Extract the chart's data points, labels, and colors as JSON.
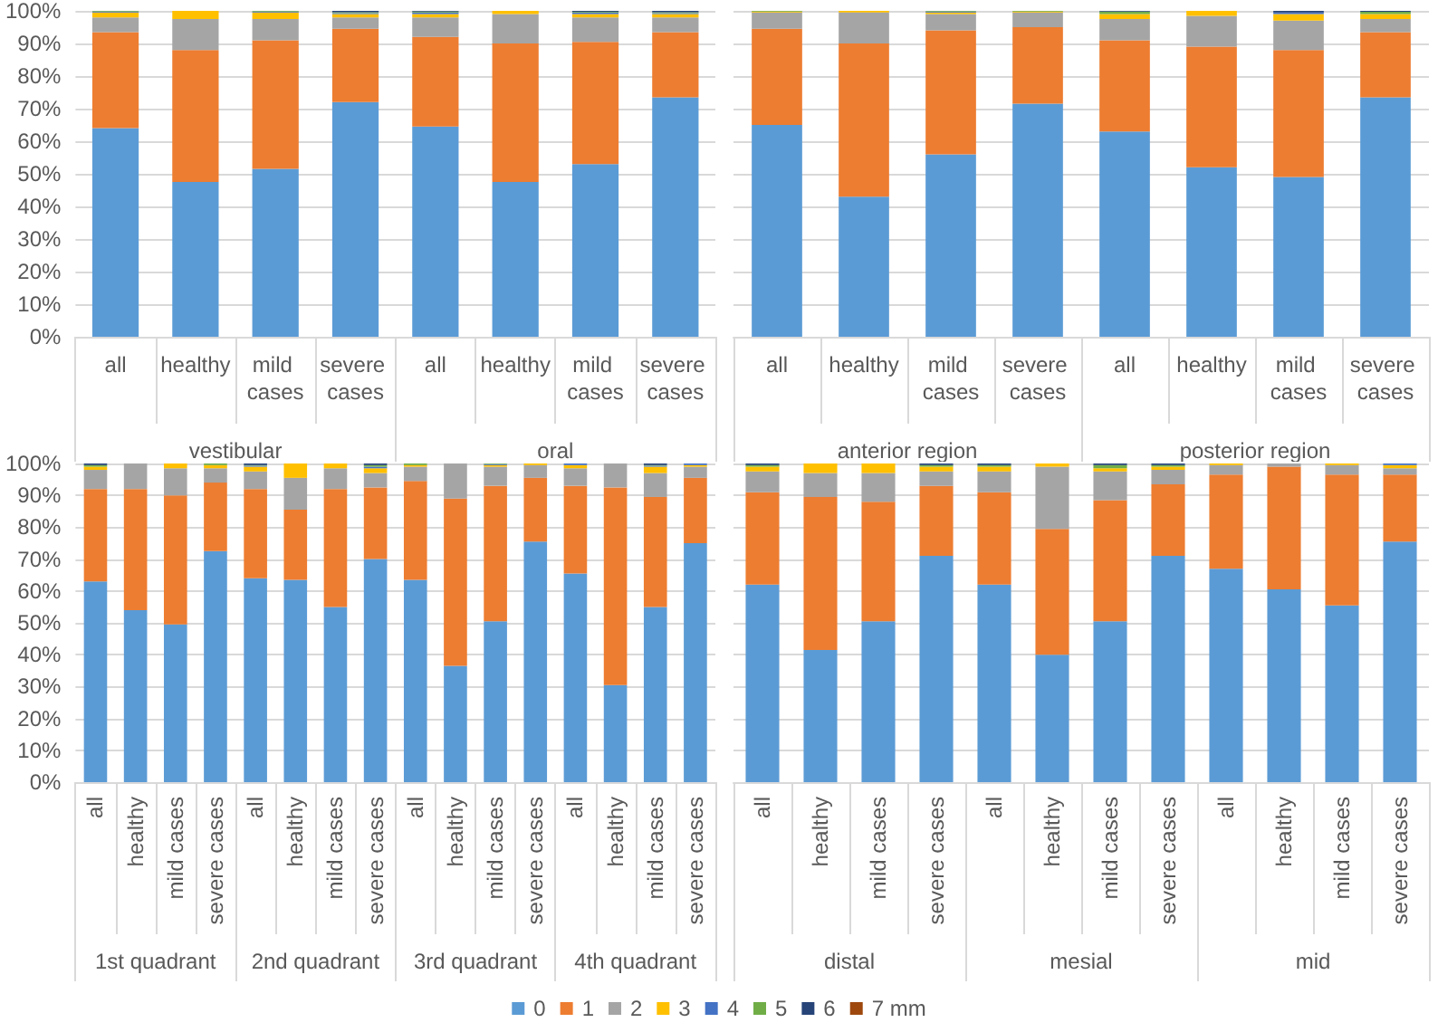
{
  "chart_data": [
    {
      "type": "bar",
      "stacked": true,
      "grid": "y",
      "categories": [
        "all",
        "healthy",
        "mild cases",
        "severe cases",
        "all",
        "healthy",
        "mild cases",
        "severe cases"
      ],
      "annotations": [
        "vestibular",
        "oral"
      ],
      "ylim": [
        0,
        100
      ],
      "yticks": [
        {
          "value": 0,
          "label": "0%"
        },
        {
          "value": 10,
          "label": "10%"
        },
        {
          "value": 20,
          "label": "20%"
        },
        {
          "value": 30,
          "label": "30%"
        },
        {
          "value": 40,
          "label": "40%"
        },
        {
          "value": 50,
          "label": "50%"
        },
        {
          "value": 60,
          "label": "60%"
        },
        {
          "value": 70,
          "label": "70%"
        },
        {
          "value": 80,
          "label": "80%"
        },
        {
          "value": 90,
          "label": "90%"
        },
        {
          "value": 100,
          "label": "100%"
        }
      ],
      "series": [
        {
          "color": "#5b9bd5",
          "values": [
            64,
            47.5,
            51.5,
            72,
            64.5,
            47.5,
            53,
            73.5
          ]
        },
        {
          "color": "#ed7d31",
          "values": [
            29.5,
            40.5,
            39.5,
            22.5,
            27.5,
            42.5,
            37.5,
            20
          ]
        },
        {
          "color": "#a5a5a5",
          "values": [
            4.5,
            9.5,
            6.5,
            3.5,
            6,
            9,
            7.5,
            4.5
          ]
        },
        {
          "color": "#ffc000",
          "values": [
            1.5,
            2.5,
            2,
            1,
            1,
            1,
            1,
            1
          ]
        },
        {
          "color": "#4472c4",
          "values": [
            0.3,
            0,
            0.3,
            0.3,
            0.5,
            0,
            0.5,
            0.3
          ]
        },
        {
          "color": "#70ad47",
          "values": [
            0.2,
            0,
            0.2,
            0.3,
            0.3,
            0,
            0.2,
            0.3
          ]
        },
        {
          "color": "#264478",
          "values": [
            0,
            0,
            0,
            0.4,
            0.2,
            0,
            0.3,
            0.4
          ]
        },
        {
          "color": "#9e480e",
          "values": [
            0,
            0,
            0,
            0,
            0,
            0,
            0,
            0
          ]
        }
      ]
    },
    {
      "type": "bar",
      "stacked": true,
      "grid": "y",
      "tick_labels": "x",
      "categories": [
        "all",
        "healthy",
        "mild cases",
        "severe cases",
        "all",
        "healthy",
        "mild cases",
        "severe cases"
      ],
      "annotations": [
        "anterior region",
        "posterior region"
      ],
      "ylim": [
        0,
        100
      ],
      "yticks": [
        {
          "value": 0,
          "label": "0%"
        },
        {
          "value": 10,
          "label": "10%"
        },
        {
          "value": 20,
          "label": "20%"
        },
        {
          "value": 30,
          "label": "30%"
        },
        {
          "value": 40,
          "label": "40%"
        },
        {
          "value": 50,
          "label": "50%"
        },
        {
          "value": 60,
          "label": "60%"
        },
        {
          "value": 70,
          "label": "70%"
        },
        {
          "value": 80,
          "label": "80%"
        },
        {
          "value": 90,
          "label": "90%"
        },
        {
          "value": 100,
          "label": "100%"
        }
      ],
      "series": [
        {
          "color": "#5b9bd5",
          "values": [
            65,
            43,
            56,
            71.5,
            63,
            52,
            49,
            73.5
          ]
        },
        {
          "color": "#ed7d31",
          "values": [
            29.5,
            47,
            38,
            23.5,
            28,
            37,
            39,
            20
          ]
        },
        {
          "color": "#a5a5a5",
          "values": [
            5,
            9.5,
            5,
            4.5,
            6.5,
            9.5,
            9,
            4
          ]
        },
        {
          "color": "#ffc000",
          "values": [
            0.3,
            0.5,
            0.5,
            0.3,
            1.5,
            1.5,
            2,
            1.5
          ]
        },
        {
          "color": "#4472c4",
          "values": [
            0,
            0,
            0.3,
            0,
            0,
            0,
            0.5,
            0
          ]
        },
        {
          "color": "#70ad47",
          "values": [
            0.2,
            0,
            0.2,
            0.2,
            0.8,
            0,
            0,
            0.7
          ]
        },
        {
          "color": "#264478",
          "values": [
            0,
            0,
            0,
            0,
            0.2,
            0,
            0.5,
            0.3
          ]
        },
        {
          "color": "#9e480e",
          "values": [
            0,
            0,
            0,
            0,
            0,
            0,
            0,
            0
          ]
        }
      ]
    },
    {
      "type": "bar",
      "stacked": true,
      "grid": "y",
      "legend": "bottom",
      "categories": [
        "all",
        "healthy",
        "mild cases",
        "severe cases",
        "all",
        "healthy",
        "mild cases",
        "severe cases",
        "all",
        "healthy",
        "mild cases",
        "severe cases",
        "all",
        "healthy",
        "mild cases",
        "severe cases"
      ],
      "annotations": [
        "1st quadrant",
        "2nd quadrant",
        "3rd quadrant",
        "4th quadrant"
      ],
      "ylim": [
        0,
        100
      ],
      "yticks": [
        {
          "value": 0,
          "label": "0%"
        },
        {
          "value": 10,
          "label": "10%"
        },
        {
          "value": 20,
          "label": "20%"
        },
        {
          "value": 30,
          "label": "30%"
        },
        {
          "value": 40,
          "label": "40%"
        },
        {
          "value": 50,
          "label": "50%"
        },
        {
          "value": 60,
          "label": "60%"
        },
        {
          "value": 70,
          "label": "70%"
        },
        {
          "value": 80,
          "label": "80%"
        },
        {
          "value": 90,
          "label": "90%"
        },
        {
          "value": 100,
          "label": "100%"
        }
      ],
      "series": [
        {
          "name": "0",
          "color": "#5b9bd5",
          "values": [
            63,
            54,
            49.5,
            72.5,
            64,
            63.5,
            55,
            70,
            63.5,
            36.5,
            50.5,
            75.5,
            65.5,
            30.5,
            55,
            75
          ]
        },
        {
          "name": "1",
          "color": "#ed7d31",
          "values": [
            29,
            38,
            40.5,
            21.5,
            28,
            22,
            37,
            22.5,
            31,
            52.5,
            42.5,
            20,
            27.5,
            62,
            34.5,
            20.5
          ]
        },
        {
          "name": "2",
          "color": "#a5a5a5",
          "values": [
            6,
            8,
            8.5,
            4.5,
            5.5,
            10,
            6.5,
            4.5,
            4.5,
            11,
            6,
            4,
            5.5,
            7.5,
            7.5,
            3.5
          ]
        },
        {
          "name": "3",
          "color": "#ffc000",
          "values": [
            1,
            0,
            1.5,
            1,
            1.5,
            4.5,
            1.5,
            1.5,
            0.5,
            0,
            0.5,
            0.5,
            1,
            0,
            2,
            0.5
          ]
        },
        {
          "name": "4",
          "color": "#4472c4",
          "values": [
            0,
            0,
            0,
            0,
            0.3,
            0,
            0,
            0.5,
            0,
            0,
            0.3,
            0,
            0.5,
            0,
            0.3,
            0.5
          ]
        },
        {
          "name": "5",
          "color": "#70ad47",
          "values": [
            0.5,
            0,
            0,
            0.5,
            0.2,
            0,
            0,
            0.5,
            0.5,
            0,
            0.2,
            0,
            0,
            0,
            0.2,
            0
          ]
        },
        {
          "name": "6",
          "color": "#264478",
          "values": [
            0.5,
            0,
            0,
            0,
            0.5,
            0,
            0,
            0.5,
            0,
            0,
            0,
            0,
            0,
            0,
            0.5,
            0
          ]
        },
        {
          "name": "7 mm",
          "color": "#9e480e",
          "values": [
            0,
            0,
            0,
            0,
            0,
            0,
            0,
            0,
            0,
            0,
            0,
            0,
            0,
            0,
            0,
            0
          ]
        }
      ]
    },
    {
      "type": "bar",
      "stacked": true,
      "grid": "y",
      "tick_labels": "x",
      "categories": [
        "all",
        "healthy",
        "mild cases",
        "severe cases",
        "all",
        "healthy",
        "mild cases",
        "severe cases",
        "all",
        "healthy",
        "mild cases",
        "severe cases"
      ],
      "annotations": [
        "distal",
        "mesial",
        "mid"
      ],
      "ylim": [
        0,
        100
      ],
      "yticks": [
        {
          "value": 0,
          "label": "0%"
        },
        {
          "value": 10,
          "label": "10%"
        },
        {
          "value": 20,
          "label": "20%"
        },
        {
          "value": 30,
          "label": "30%"
        },
        {
          "value": 40,
          "label": "40%"
        },
        {
          "value": 50,
          "label": "50%"
        },
        {
          "value": 60,
          "label": "60%"
        },
        {
          "value": 70,
          "label": "70%"
        },
        {
          "value": 80,
          "label": "80%"
        },
        {
          "value": 90,
          "label": "90%"
        },
        {
          "value": 100,
          "label": "100%"
        }
      ],
      "series": [
        {
          "color": "#5b9bd5",
          "values": [
            62,
            41.5,
            50.5,
            71,
            62,
            40,
            50.5,
            71,
            67,
            60.5,
            55.5,
            75.5
          ]
        },
        {
          "color": "#ed7d31",
          "values": [
            29,
            48,
            37.5,
            22,
            29,
            39.5,
            38,
            22.5,
            29.5,
            38.5,
            41,
            21
          ]
        },
        {
          "color": "#a5a5a5",
          "values": [
            6.5,
            7.5,
            9,
            4.5,
            6.5,
            19.5,
            9,
            4.5,
            3,
            1,
            3,
            2
          ]
        },
        {
          "color": "#ffc000",
          "values": [
            1.5,
            3,
            3,
            1.5,
            1.5,
            1,
            1,
            1,
            0.5,
            0,
            0.5,
            1
          ]
        },
        {
          "color": "#4472c4",
          "values": [
            0,
            0,
            0,
            0,
            0,
            0,
            0,
            0,
            0,
            0,
            0,
            0.5
          ]
        },
        {
          "color": "#70ad47",
          "values": [
            0.5,
            0,
            0,
            0.5,
            0.5,
            0,
            1,
            0.5,
            0,
            0,
            0,
            0
          ]
        },
        {
          "color": "#264478",
          "values": [
            0.5,
            0,
            0,
            0.5,
            0.5,
            0,
            0.5,
            0.5,
            0,
            0,
            0,
            0
          ]
        },
        {
          "color": "#9e480e",
          "values": [
            0,
            0,
            0,
            0,
            0,
            0,
            0,
            0,
            0,
            0,
            0,
            0
          ]
        }
      ]
    }
  ]
}
